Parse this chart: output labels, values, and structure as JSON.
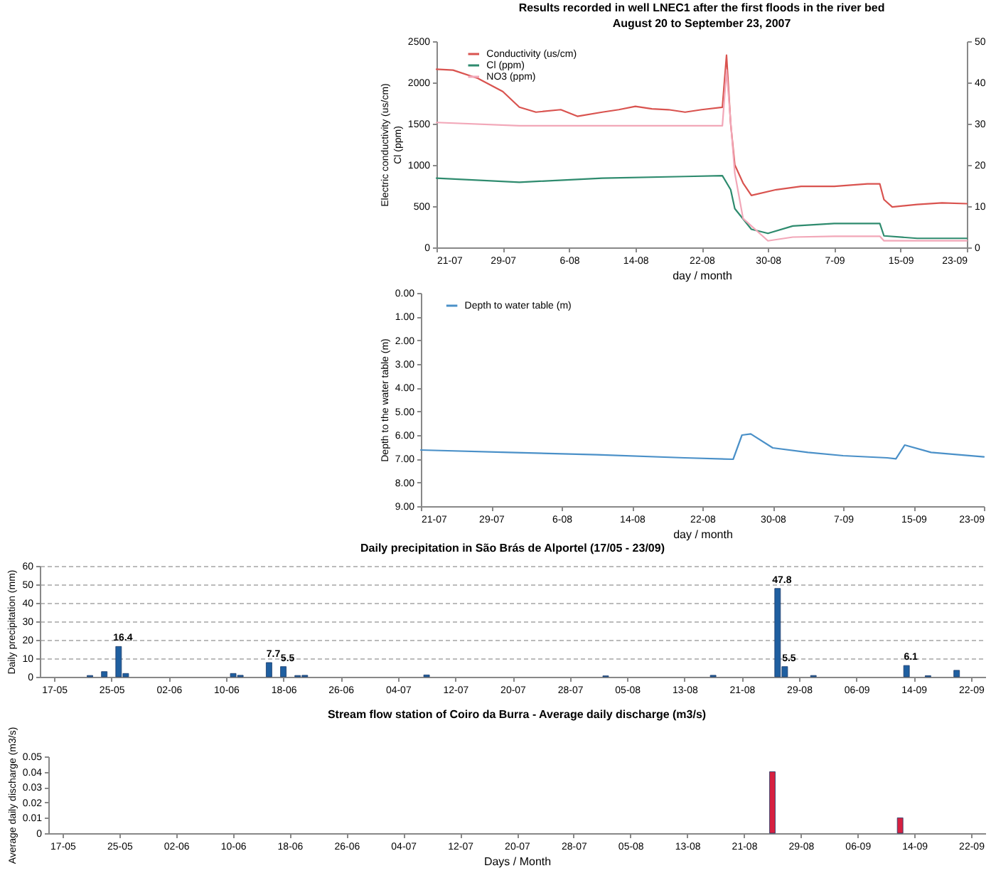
{
  "chart_data": [
    {
      "type": "line",
      "title": "Results recorded in well LNEC1 after the first floods in the river bed",
      "subtitle": "August 20 to September 23, 2007",
      "xlabel": "day / month",
      "ylabel": "Electric conductivity (us/cm)\nCl (ppm)",
      "xlim": [
        "2007-07-21",
        "2007-09-23"
      ],
      "xticks": [
        {
          "value": "2007-07-21",
          "label": "21-07"
        },
        {
          "value": "2007-07-29",
          "label": "29-07"
        },
        {
          "value": "2007-08-06",
          "label": "6-08"
        },
        {
          "value": "2007-08-14",
          "label": "14-08"
        },
        {
          "value": "2007-08-22",
          "label": "22-08"
        },
        {
          "value": "2007-08-30",
          "label": "30-08"
        },
        {
          "value": "2007-09-07",
          "label": "7-09"
        },
        {
          "value": "2007-09-15",
          "label": "15-09"
        },
        {
          "value": "2007-09-23",
          "label": "23-09"
        }
      ],
      "ylim": [
        0,
        2500
      ],
      "yticks": [
        0,
        500,
        1000,
        1500,
        2000,
        2500
      ],
      "y2lim": [
        0,
        50
      ],
      "y2ticks": [
        0,
        10,
        20,
        30,
        40,
        50
      ],
      "legend": "top left",
      "series": [
        {
          "name": "Conductivity (us/cm)",
          "color": "#d9534f",
          "x": [
            "2007-07-21",
            "2007-07-23",
            "2007-07-26",
            "2007-07-29",
            "2007-07-31",
            "2007-08-02",
            "2007-08-05",
            "2007-08-07",
            "2007-08-10",
            "2007-08-12",
            "2007-08-14",
            "2007-08-16",
            "2007-08-18",
            "2007-08-20",
            "2007-08-22",
            "2007-08-24T12:00",
            "2007-08-25T00:00",
            "2007-08-25T12:00",
            "2007-08-26",
            "2007-08-27",
            "2007-08-28",
            "2007-08-31",
            "2007-09-03",
            "2007-09-07",
            "2007-09-11",
            "2007-09-12T12:00",
            "2007-09-13T00:00",
            "2007-09-14",
            "2007-09-17",
            "2007-09-20",
            "2007-09-23"
          ],
          "values": [
            2160,
            2150,
            2050,
            1890,
            1700,
            1640,
            1670,
            1590,
            1640,
            1670,
            1710,
            1680,
            1670,
            1640,
            1670,
            1700,
            2330,
            1500,
            1000,
            780,
            630,
            700,
            740,
            740,
            770,
            770,
            580,
            490,
            520,
            540,
            530
          ]
        },
        {
          "name": "Cl (ppm)",
          "color": "#2e8b6e",
          "x": [
            "2007-07-21",
            "2007-07-31",
            "2007-08-10",
            "2007-08-20",
            "2007-08-24T12:00",
            "2007-08-25T12:00",
            "2007-08-26",
            "2007-08-28",
            "2007-08-30",
            "2007-09-02",
            "2007-09-07",
            "2007-09-12T12:00",
            "2007-09-13T00:00",
            "2007-09-17",
            "2007-09-23"
          ],
          "values": [
            840,
            790,
            840,
            860,
            870,
            700,
            470,
            220,
            170,
            260,
            290,
            290,
            140,
            110,
            110
          ]
        },
        {
          "name": "NO3 (ppm)",
          "color": "#f2a7b8",
          "axis": "y2",
          "x": [
            "2007-07-21",
            "2007-07-31",
            "2007-08-10",
            "2007-08-20",
            "2007-08-24T12:00",
            "2007-08-25T00:00",
            "2007-08-26",
            "2007-08-27",
            "2007-08-30",
            "2007-09-02",
            "2007-09-07",
            "2007-09-12T12:00",
            "2007-09-13T00:00",
            "2007-09-23"
          ],
          "values": [
            30.3,
            29.5,
            29.5,
            29.5,
            29.5,
            43,
            18,
            7,
            1.6,
            2.5,
            2.7,
            2.7,
            1.6,
            1.6
          ]
        }
      ]
    },
    {
      "type": "line",
      "xlabel": "day / month",
      "ylabel": "Depth to the water table (m)",
      "xlim": [
        "2007-07-21",
        "2007-09-23"
      ],
      "xticks": [
        {
          "value": "2007-07-21",
          "label": "21-07"
        },
        {
          "value": "2007-07-29",
          "label": "29-07"
        },
        {
          "value": "2007-08-06",
          "label": "6-08"
        },
        {
          "value": "2007-08-14",
          "label": "14-08"
        },
        {
          "value": "2007-08-22",
          "label": "22-08"
        },
        {
          "value": "2007-08-30",
          "label": "30-08"
        },
        {
          "value": "2007-09-07",
          "label": "7-09"
        },
        {
          "value": "2007-09-15",
          "label": "15-09"
        },
        {
          "value": "2007-09-23",
          "label": "23-09"
        }
      ],
      "ylim": [
        9,
        0
      ],
      "yticks": [
        {
          "value": 0,
          "label": "0.00"
        },
        {
          "value": 1,
          "label": "1.00"
        },
        {
          "value": 2,
          "label": "2.00"
        },
        {
          "value": 3,
          "label": "3.00"
        },
        {
          "value": 4,
          "label": "4.00"
        },
        {
          "value": 5,
          "label": "5.00"
        },
        {
          "value": 6,
          "label": "6.00"
        },
        {
          "value": 7,
          "label": "7.00"
        },
        {
          "value": 8,
          "label": "8.00"
        },
        {
          "value": 9,
          "label": "9.00"
        }
      ],
      "legend": "top left",
      "series": [
        {
          "name": "Depth to water table (m)",
          "color": "#4a90c8",
          "x": [
            "2007-07-21",
            "2007-07-31",
            "2007-08-10",
            "2007-08-20",
            "2007-08-25T12:00",
            "2007-08-26T12:00",
            "2007-08-27T12:00",
            "2007-08-30",
            "2007-09-03",
            "2007-09-07",
            "2007-09-12",
            "2007-09-13",
            "2007-09-14",
            "2007-09-17",
            "2007-09-23"
          ],
          "values": [
            6.63,
            6.73,
            6.83,
            6.96,
            7.02,
            6.0,
            5.95,
            6.54,
            6.73,
            6.87,
            6.96,
            7.0,
            6.42,
            6.73,
            6.92
          ]
        }
      ]
    },
    {
      "type": "bar",
      "title": "Daily precipitation in São Brás de Alportel (17/05 - 23/09)",
      "ylabel": "Daily precipitation (mm)",
      "xlim": [
        "2007-05-15",
        "2007-09-24"
      ],
      "xticks": [
        {
          "value": "2007-05-17",
          "label": "17-05"
        },
        {
          "value": "2007-05-25",
          "label": "25-05"
        },
        {
          "value": "2007-06-02",
          "label": "02-06"
        },
        {
          "value": "2007-06-10",
          "label": "10-06"
        },
        {
          "value": "2007-06-18",
          "label": "18-06"
        },
        {
          "value": "2007-06-26",
          "label": "26-06"
        },
        {
          "value": "2007-07-04",
          "label": "04-07"
        },
        {
          "value": "2007-07-12",
          "label": "12-07"
        },
        {
          "value": "2007-07-20",
          "label": "20-07"
        },
        {
          "value": "2007-07-28",
          "label": "28-07"
        },
        {
          "value": "2007-08-05",
          "label": "05-08"
        },
        {
          "value": "2007-08-13",
          "label": "13-08"
        },
        {
          "value": "2007-08-21",
          "label": "21-08"
        },
        {
          "value": "2007-08-29",
          "label": "29-08"
        },
        {
          "value": "2007-09-06",
          "label": "06-09"
        },
        {
          "value": "2007-09-14",
          "label": "14-09"
        },
        {
          "value": "2007-09-22",
          "label": "22-09"
        }
      ],
      "ylim": [
        0,
        60
      ],
      "yticks": [
        0,
        10,
        20,
        30,
        40,
        50,
        60
      ],
      "grid": "y",
      "x": [
        "2007-05-22",
        "2007-05-24",
        "2007-05-26",
        "2007-05-27",
        "2007-06-11",
        "2007-06-12",
        "2007-06-16",
        "2007-06-18",
        "2007-06-20",
        "2007-06-21",
        "2007-07-08",
        "2007-08-02",
        "2007-08-17",
        "2007-08-26",
        "2007-08-27",
        "2007-08-31",
        "2007-09-13",
        "2007-09-16",
        "2007-09-20"
      ],
      "values": [
        0.7,
        2.8,
        16.4,
        1.8,
        1.8,
        0.8,
        7.7,
        5.5,
        0.7,
        0.8,
        1.0,
        0.5,
        0.8,
        47.8,
        5.5,
        0.7,
        6.1,
        0.6,
        3.5
      ],
      "value_labels": [
        null,
        null,
        "16.4",
        null,
        null,
        null,
        "7.7",
        "5.5",
        null,
        null,
        null,
        null,
        null,
        "47.8",
        "5.5",
        null,
        "6.1",
        null,
        null
      ],
      "color": "#1f5fa0"
    },
    {
      "type": "bar",
      "title": "Stream flow station of Coiro da Burra - Average daily discharge (m3/s)",
      "xlabel": "Days / Month",
      "ylabel": "Average daily discharge (m3/s)",
      "xlim": [
        "2007-05-15",
        "2007-09-24"
      ],
      "xticks": [
        {
          "value": "2007-05-17",
          "label": "17-05"
        },
        {
          "value": "2007-05-25",
          "label": "25-05"
        },
        {
          "value": "2007-06-02",
          "label": "02-06"
        },
        {
          "value": "2007-06-10",
          "label": "10-06"
        },
        {
          "value": "2007-06-18",
          "label": "18-06"
        },
        {
          "value": "2007-06-26",
          "label": "26-06"
        },
        {
          "value": "2007-07-04",
          "label": "04-07"
        },
        {
          "value": "2007-07-12",
          "label": "12-07"
        },
        {
          "value": "2007-07-20",
          "label": "20-07"
        },
        {
          "value": "2007-07-28",
          "label": "28-07"
        },
        {
          "value": "2007-08-05",
          "label": "05-08"
        },
        {
          "value": "2007-08-13",
          "label": "13-08"
        },
        {
          "value": "2007-08-21",
          "label": "21-08"
        },
        {
          "value": "2007-08-29",
          "label": "29-08"
        },
        {
          "value": "2007-09-06",
          "label": "06-09"
        },
        {
          "value": "2007-09-14",
          "label": "14-09"
        },
        {
          "value": "2007-09-22",
          "label": "22-09"
        }
      ],
      "ylim": [
        0,
        0.05
      ],
      "yticks": [
        0,
        0.01,
        0.02,
        0.03,
        0.04,
        0.05
      ],
      "series": [
        {
          "color": "#d62040",
          "x": [
            "2007-08-25",
            "2007-09-12"
          ],
          "values": [
            0.04,
            0.01
          ]
        }
      ]
    }
  ]
}
